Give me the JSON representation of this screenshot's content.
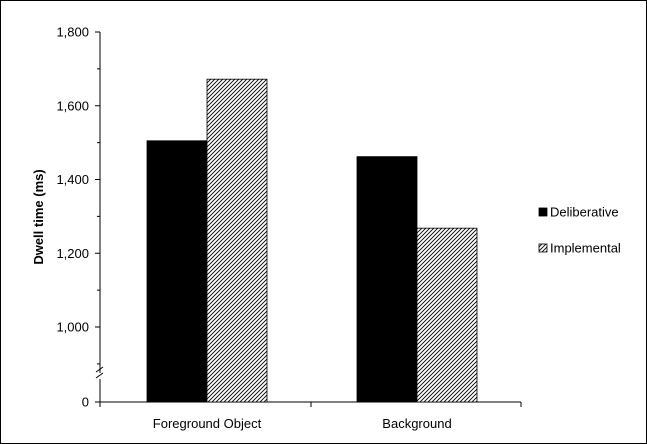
{
  "chart_data": {
    "type": "bar",
    "categories": [
      "Foreground Object",
      "Background"
    ],
    "series": [
      {
        "name": "Deliberative",
        "values": [
          1505,
          1462
        ],
        "color": "#000000",
        "pattern": "solid"
      },
      {
        "name": "Implemental",
        "values": [
          1672,
          1268
        ],
        "color": "#000000",
        "pattern": "diagonal-hatch"
      }
    ],
    "ylabel": "Dwell time (ms)",
    "xlabel": "",
    "ylim": [
      800,
      1800
    ],
    "axis_break": true,
    "y_ticks": [
      {
        "value": 1800,
        "label": "1,800"
      },
      {
        "value": 1600,
        "label": "1,600"
      },
      {
        "value": 1400,
        "label": "1,400"
      },
      {
        "value": 1200,
        "label": "1,200"
      },
      {
        "value": 1000,
        "label": "1,000"
      }
    ],
    "y_minor_ticks": [
      1700,
      1500,
      1300,
      1100,
      900
    ],
    "zero_label": "0",
    "grid": false,
    "legend_position": "right"
  }
}
